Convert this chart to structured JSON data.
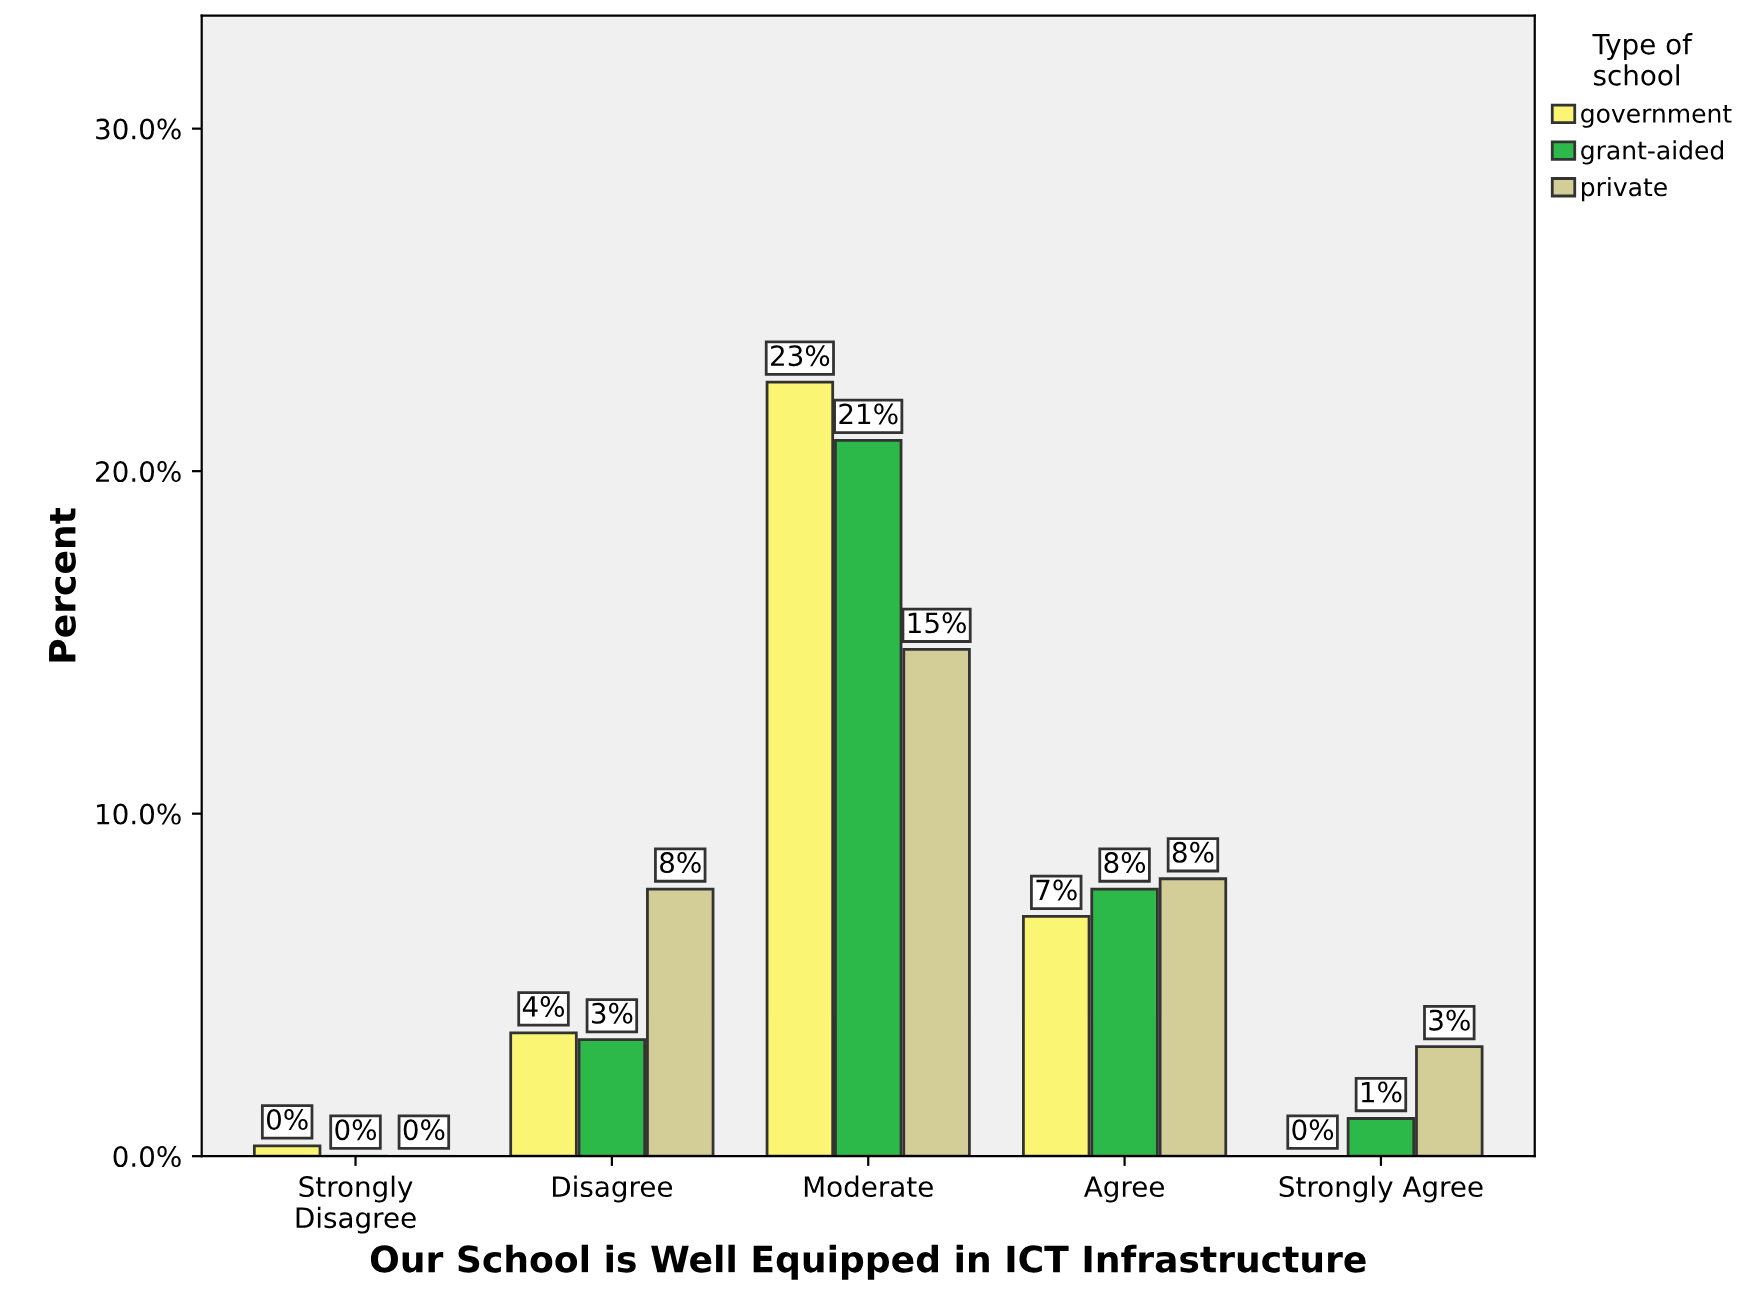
{
  "chart_data": {
    "type": "bar",
    "xlabel": "Our School is Well Equipped in ICT Infrastructure",
    "ylabel": "Percent",
    "legend_title": "Type of\nschool",
    "legend": "right",
    "grid": false,
    "categories": [
      "Strongly\nDisagree",
      "Disagree",
      "Moderate",
      "Agree",
      "Strongly Agree"
    ],
    "series": [
      {
        "name": "government",
        "color": "#faf572",
        "values": [
          0.3,
          3.6,
          22.6,
          7.0,
          0.0
        ],
        "value_labels": [
          "0%",
          "4%",
          "23%",
          "7%",
          "0%"
        ]
      },
      {
        "name": "grant-aided",
        "color": "#2db84a",
        "values": [
          0.0,
          3.4,
          20.9,
          7.8,
          1.1
        ],
        "value_labels": [
          "0%",
          "3%",
          "21%",
          "8%",
          "1%"
        ]
      },
      {
        "name": "private",
        "color": "#d3ce97",
        "values": [
          0.0,
          7.8,
          14.8,
          8.1,
          3.2
        ],
        "value_labels": [
          "0%",
          "8%",
          "15%",
          "8%",
          "3%"
        ]
      }
    ],
    "ylim": [
      0,
      33.3
    ],
    "yticks": [
      {
        "value": 0,
        "label": "0.0%"
      },
      {
        "value": 10,
        "label": "10.0%"
      },
      {
        "value": 20,
        "label": "20.0%"
      },
      {
        "value": 30,
        "label": "30.0%"
      }
    ]
  }
}
